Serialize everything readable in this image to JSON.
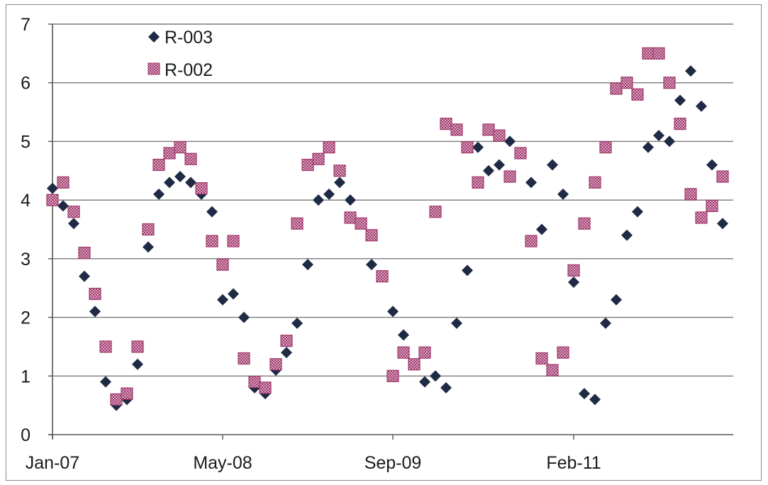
{
  "chart_data": {
    "type": "scatter",
    "title": "",
    "xlabel": "",
    "ylabel": "",
    "x_domain": [
      "2007-01",
      "2012-05"
    ],
    "ylim": [
      0,
      7
    ],
    "y_ticks": [
      0,
      1,
      2,
      3,
      4,
      5,
      6,
      7
    ],
    "x_ticks": [
      {
        "value": "2007-01",
        "label": "Jan-07"
      },
      {
        "value": "2008-05",
        "label": "May-08"
      },
      {
        "value": "2009-09",
        "label": "Sep-09"
      },
      {
        "value": "2011-02",
        "label": "Feb-11"
      }
    ],
    "grid": "horizontal",
    "legend": "top-left",
    "series": [
      {
        "name": "R-003",
        "marker": "diamond",
        "color": "#1f2a44",
        "x": [
          "2007-01",
          "2007-02",
          "2007-03",
          "2007-04",
          "2007-05",
          "2007-06",
          "2007-07",
          "2007-08",
          "2007-09",
          "2007-10",
          "2007-11",
          "2007-12",
          "2008-01",
          "2008-02",
          "2008-03",
          "2008-04",
          "2008-05",
          "2008-06",
          "2008-07",
          "2008-08",
          "2008-09",
          "2008-10",
          "2008-11",
          "2008-12",
          "2009-01",
          "2009-02",
          "2009-03",
          "2009-04",
          "2009-05",
          "2009-06",
          "2009-07",
          "2009-08",
          "2009-09",
          "2009-10",
          "2009-11",
          "2009-12",
          "2010-01",
          "2010-02",
          "2010-03",
          "2010-04",
          "2010-05",
          "2010-06",
          "2010-07",
          "2010-08",
          "2010-09",
          "2010-10",
          "2010-11",
          "2010-12",
          "2011-01",
          "2011-02",
          "2011-03",
          "2011-04",
          "2011-05",
          "2011-06",
          "2011-07",
          "2011-08",
          "2011-09",
          "2011-10",
          "2011-11",
          "2011-12",
          "2012-01",
          "2012-02",
          "2012-03",
          "2012-04"
        ],
        "values": [
          4.2,
          3.9,
          3.6,
          2.7,
          2.1,
          0.9,
          0.5,
          0.6,
          1.2,
          3.2,
          4.1,
          4.3,
          4.4,
          4.3,
          4.1,
          3.8,
          2.3,
          2.4,
          2.0,
          0.8,
          0.7,
          1.1,
          1.4,
          1.9,
          2.9,
          4.0,
          4.1,
          4.3,
          4.0,
          3.6,
          2.9,
          2.7,
          2.1,
          1.7,
          1.2,
          0.9,
          1.0,
          0.8,
          1.9,
          2.8,
          4.9,
          4.5,
          4.6,
          5.0,
          4.8,
          4.3,
          3.5,
          4.6,
          4.1,
          2.6,
          0.7,
          0.6,
          1.9,
          2.3,
          3.4,
          3.8,
          4.9,
          5.1,
          5.0,
          5.7,
          6.2,
          5.6,
          4.6,
          3.6
        ]
      },
      {
        "name": "R-002",
        "marker": "square",
        "color": "#a03a6c",
        "x": [
          "2007-01",
          "2007-02",
          "2007-03",
          "2007-04",
          "2007-05",
          "2007-06",
          "2007-07",
          "2007-08",
          "2007-09",
          "2007-10",
          "2007-11",
          "2007-12",
          "2008-01",
          "2008-02",
          "2008-03",
          "2008-04",
          "2008-05",
          "2008-06",
          "2008-07",
          "2008-08",
          "2008-09",
          "2008-10",
          "2008-11",
          "2008-12",
          "2009-01",
          "2009-02",
          "2009-03",
          "2009-04",
          "2009-05",
          "2009-06",
          "2009-07",
          "2009-08",
          "2009-09",
          "2009-10",
          "2009-11",
          "2009-12",
          "2010-01",
          "2010-02",
          "2010-03",
          "2010-04",
          "2010-05",
          "2010-06",
          "2010-07",
          "2010-08",
          "2010-09",
          "2010-10",
          "2010-11",
          "2010-12",
          "2011-01",
          "2011-02",
          "2011-03",
          "2011-04",
          "2011-05",
          "2011-06",
          "2011-07",
          "2011-08",
          "2011-09",
          "2011-10",
          "2011-11",
          "2011-12",
          "2012-01",
          "2012-02",
          "2012-03",
          "2012-04"
        ],
        "values": [
          4.0,
          4.3,
          3.8,
          3.1,
          2.4,
          1.5,
          0.6,
          0.7,
          1.5,
          3.5,
          4.6,
          4.8,
          4.9,
          4.7,
          4.2,
          3.3,
          2.9,
          3.3,
          1.3,
          0.9,
          0.8,
          1.2,
          1.6,
          3.6,
          4.6,
          4.7,
          4.9,
          4.5,
          3.7,
          3.6,
          3.4,
          2.7,
          1.0,
          1.4,
          1.2,
          1.4,
          3.8,
          5.3,
          5.2,
          4.9,
          4.3,
          5.2,
          5.1,
          4.4,
          4.8,
          3.3,
          1.3,
          1.1,
          1.4,
          2.8,
          3.6,
          4.3,
          4.9,
          5.9,
          6.0,
          5.8,
          6.5,
          6.5,
          6.0,
          5.3,
          4.1,
          3.7,
          3.9,
          4.4
        ]
      }
    ]
  }
}
